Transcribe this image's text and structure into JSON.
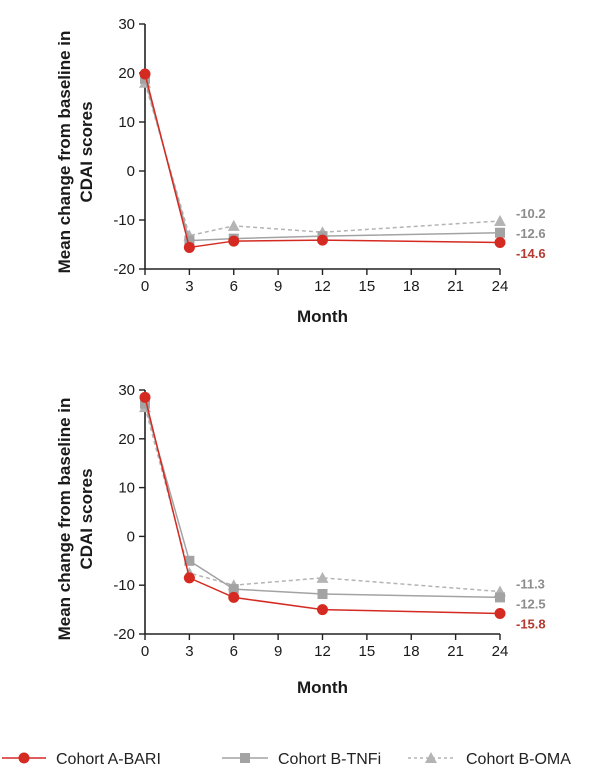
{
  "colors": {
    "bari": "#d42a22",
    "tnfi": "#a3a3a3",
    "oma": "#b4b4b4",
    "label_bari": "#b23a33",
    "label_other": "#8c8c8c"
  },
  "legend": [
    {
      "name": "Cohort A-BARI",
      "marker": "circle",
      "line": "solid"
    },
    {
      "name": "Cohort B-TNFi",
      "marker": "square",
      "line": "solid"
    },
    {
      "name": "Cohort B-OMA",
      "marker": "triangle",
      "line": "dashed"
    }
  ],
  "chart_data": [
    {
      "type": "line",
      "title": "",
      "xlabel": "Month",
      "ylabel": "Mean change from baseline in CDAI scores",
      "x": [
        0,
        3,
        6,
        12,
        24
      ],
      "xticks": [
        0,
        3,
        6,
        9,
        12,
        15,
        18,
        21,
        24
      ],
      "yticks": [
        -20,
        -10,
        0,
        10,
        20,
        30
      ],
      "xlim": [
        0,
        24
      ],
      "ylim": [
        -20,
        30
      ],
      "grid": false,
      "series": [
        {
          "name": "Cohort B-OMA",
          "values": [
            18.0,
            -13.2,
            -11.2,
            -12.5,
            -10.2
          ],
          "end_label": "-10.2"
        },
        {
          "name": "Cohort B-TNFi",
          "values": [
            18.8,
            -14.2,
            -13.8,
            -13.3,
            -12.6
          ],
          "end_label": "-12.6"
        },
        {
          "name": "Cohort A-BARI",
          "values": [
            19.8,
            -15.6,
            -14.3,
            -14.1,
            -14.6
          ],
          "end_label": "-14.6"
        }
      ]
    },
    {
      "type": "line",
      "title": "",
      "xlabel": "Month",
      "ylabel": "Mean change from baseline in CDAI scores",
      "x": [
        0,
        3,
        6,
        12,
        24
      ],
      "xticks": [
        0,
        3,
        6,
        9,
        12,
        15,
        18,
        21,
        24
      ],
      "yticks": [
        -20,
        -10,
        0,
        10,
        20,
        30
      ],
      "xlim": [
        0,
        24
      ],
      "ylim": [
        -20,
        30
      ],
      "grid": false,
      "series": [
        {
          "name": "Cohort B-OMA",
          "values": [
            26.5,
            -7.5,
            -10.0,
            -8.5,
            -11.3
          ],
          "end_label": "-11.3"
        },
        {
          "name": "Cohort B-TNFi",
          "values": [
            27.2,
            -5.0,
            -10.8,
            -11.8,
            -12.5
          ],
          "end_label": "-12.5"
        },
        {
          "name": "Cohort A-BARI",
          "values": [
            28.5,
            -8.5,
            -12.5,
            -15.0,
            -15.8
          ],
          "end_label": "-15.8"
        }
      ]
    }
  ]
}
